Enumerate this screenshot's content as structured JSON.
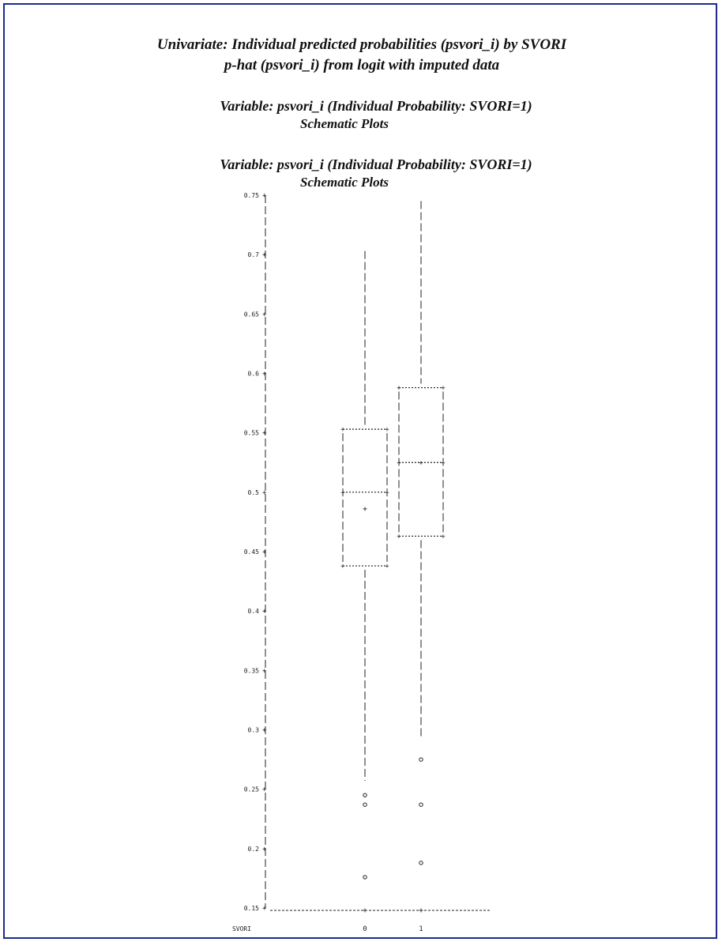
{
  "header": {
    "title_line1": "Univariate: Individual predicted probabilities (psvori_i) by SVORI",
    "title_line2": "p-hat (psvori_i) from logit with imputed data",
    "var_line1": "Variable:  psvori_i  (Individual Probability: SVORI=1)",
    "plot_line1": "Schematic Plots",
    "var_line2": "Variable:  psvori_i  (Individual Probability: SVORI=1)",
    "plot_line2": "Schematic Plots"
  },
  "colors": {
    "frame": "#1f2a8a",
    "ink": "#222222"
  },
  "chart_data": {
    "type": "boxplot",
    "xlabel": "SVORI",
    "categories": [
      "0",
      "1"
    ],
    "ylim": [
      0.15,
      0.75
    ],
    "yticks": [
      "0.75",
      "0.7",
      "0.65",
      "0.6",
      "0.55",
      "0.5",
      "0.45",
      "0.4",
      "0.35",
      "0.3",
      "0.25",
      "0.2",
      "0.15"
    ],
    "ytick_values": [
      0.75,
      0.7,
      0.65,
      0.6,
      0.55,
      0.5,
      0.45,
      0.4,
      0.35,
      0.3,
      0.25,
      0.2,
      0.15
    ],
    "boxes": [
      {
        "category": "0",
        "whisker_high": 0.703,
        "q3": 0.553,
        "median": 0.5,
        "mean": 0.486,
        "q1": 0.438,
        "whisker_low": 0.257,
        "outliers": [
          0.245,
          0.237,
          0.176
        ]
      },
      {
        "category": "1",
        "whisker_high": 0.745,
        "q3": 0.588,
        "median": 0.525,
        "q1": 0.463,
        "whisker_low": 0.292,
        "outliers": [
          0.275,
          0.237,
          0.188
        ]
      }
    ]
  }
}
